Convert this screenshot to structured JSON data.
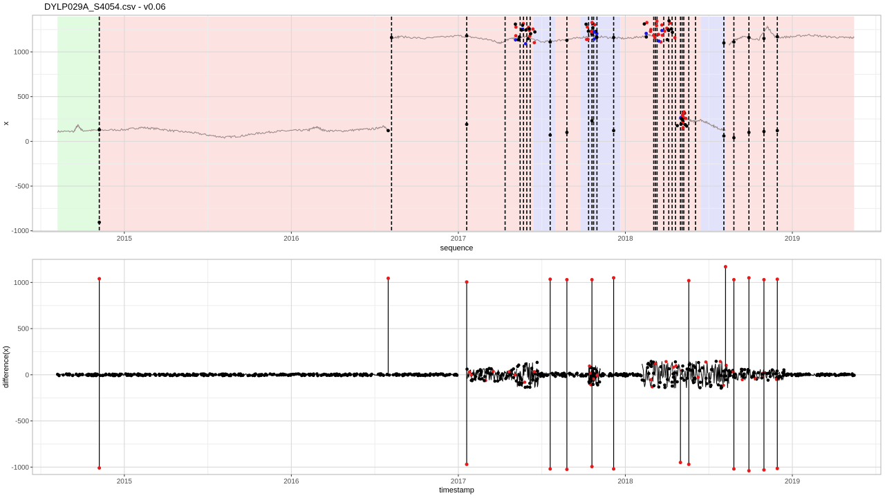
{
  "page": {
    "title": "DYLP029A_S4054.csv - v0.06"
  },
  "colors": {
    "panel_border": "#b3b3b3",
    "grid_major": "#d9d9d9",
    "grid_minor": "#ededed",
    "green_band": "#e0fbe0",
    "red_band": "#fde2e2",
    "blue_band": "#e2e3fb",
    "series_top": "#9b8a8a",
    "changepoint_line": "#000000",
    "point_black": "#000000",
    "point_red": "#e41a1c",
    "point_blue": "#1a1ae4"
  },
  "chart_data": [
    {
      "type": "line",
      "title": "",
      "xlabel": "sequence",
      "ylabel": "x",
      "xlim": [
        2014.45,
        2019.53
      ],
      "ylim": [
        -1010,
        1410
      ],
      "x_ticks": [
        2015,
        2016,
        2017,
        2018,
        2019
      ],
      "x_tick_labels": [
        "2015",
        "2016",
        "2017",
        "2018",
        "2019"
      ],
      "y_ticks": [
        1000,
        500,
        0,
        -500,
        -1000
      ],
      "y_tick_labels": [
        "1000",
        "500",
        "0",
        "-500",
        "-1000"
      ],
      "grid": true,
      "regions": [
        {
          "class": "green",
          "from": 2014.6,
          "to": 2014.85
        },
        {
          "class": "red",
          "from": 2014.85,
          "to": 2017.45
        },
        {
          "class": "blue",
          "from": 2017.45,
          "to": 2017.58
        },
        {
          "class": "red",
          "from": 2017.58,
          "to": 2017.73
        },
        {
          "class": "blue",
          "from": 2017.73,
          "to": 2017.97
        },
        {
          "class": "red",
          "from": 2017.97,
          "to": 2018.45
        },
        {
          "class": "blue",
          "from": 2018.45,
          "to": 2018.6
        },
        {
          "class": "red",
          "from": 2018.6,
          "to": 2019.37
        }
      ],
      "series": [
        {
          "x": [
            2014.6,
            2014.7,
            2014.72,
            2014.75,
            2014.85,
            2015.0,
            2015.1,
            2015.2,
            2015.3,
            2015.4,
            2015.5,
            2015.6,
            2015.7,
            2015.8,
            2015.9,
            2016.0,
            2016.1,
            2016.15,
            2016.2,
            2016.3,
            2016.4,
            2016.5,
            2016.55,
            2016.58
          ],
          "y": [
            110,
            112,
            180,
            120,
            125,
            130,
            155,
            140,
            115,
            100,
            70,
            45,
            60,
            90,
            110,
            120,
            125,
            160,
            120,
            115,
            130,
            140,
            170,
            120
          ]
        },
        {
          "x": [
            2016.6,
            2016.65,
            2016.8,
            2017.0,
            2017.1,
            2017.2,
            2017.25,
            2017.3,
            2017.4,
            2017.5,
            2017.6,
            2017.7,
            2017.8,
            2017.9,
            2018.0,
            2018.1,
            2018.15,
            2018.2
          ],
          "y": [
            1160,
            1170,
            1150,
            1180,
            1160,
            1130,
            1100,
            1140,
            1170,
            1110,
            1130,
            1150,
            1180,
            1160,
            1150,
            1170,
            1190,
            1180
          ]
        },
        {
          "x": [
            2018.32,
            2018.35,
            2018.4,
            2018.45,
            2018.5,
            2018.55,
            2018.6
          ],
          "y": [
            250,
            280,
            220,
            240,
            200,
            150,
            120
          ]
        },
        {
          "x": [
            2018.62,
            2018.65,
            2018.7,
            2018.8,
            2018.85,
            2018.9,
            2019.0,
            2019.1,
            2019.2,
            2019.3,
            2019.37
          ],
          "y": [
            1080,
            1130,
            1170,
            1140,
            1280,
            1160,
            1170,
            1190,
            1170,
            1160,
            1160
          ]
        }
      ],
      "changepoints": [
        2014.85,
        2016.6,
        2017.05,
        2017.28,
        2017.37,
        2017.39,
        2017.41,
        2017.43,
        2017.55,
        2017.65,
        2017.78,
        2017.8,
        2017.81,
        2017.83,
        2017.93,
        2018.17,
        2018.18,
        2018.19,
        2018.23,
        2018.26,
        2018.28,
        2018.3,
        2018.33,
        2018.34,
        2018.35,
        2018.38,
        2018.42,
        2018.59,
        2018.65,
        2018.74,
        2018.83,
        2018.91
      ]
    },
    {
      "type": "scatter",
      "title": "",
      "xlabel": "timestamp",
      "ylabel": "difference(x)",
      "xlim": [
        2014.45,
        2019.53
      ],
      "ylim": [
        -1080,
        1250
      ],
      "x_ticks": [
        2015,
        2016,
        2017,
        2018,
        2019
      ],
      "x_tick_labels": [
        "2015",
        "2016",
        "2017",
        "2018",
        "2019"
      ],
      "y_ticks": [
        1000,
        500,
        0,
        -500,
        -1000
      ],
      "y_tick_labels": [
        "1000",
        "500",
        "0",
        "-500",
        "-1000"
      ],
      "grid": true,
      "spikes": [
        {
          "x": 2014.85,
          "low": -1010,
          "high": 1040
        },
        {
          "x": 2016.58,
          "low": 0,
          "high": 1045
        },
        {
          "x": 2017.05,
          "low": -970,
          "high": 1005
        },
        {
          "x": 2017.55,
          "low": -1020,
          "high": 1035
        },
        {
          "x": 2017.65,
          "low": -1025,
          "high": 1030
        },
        {
          "x": 2017.8,
          "low": -995,
          "high": 1030
        },
        {
          "x": 2017.93,
          "low": -1020,
          "high": 1050
        },
        {
          "x": 2018.33,
          "low": -950,
          "high": 0
        },
        {
          "x": 2018.38,
          "low": -970,
          "high": 1020
        },
        {
          "x": 2018.6,
          "low": 0,
          "high": 1170
        },
        {
          "x": 2018.65,
          "low": -1020,
          "high": 1030
        },
        {
          "x": 2018.74,
          "low": -1040,
          "high": 1050
        },
        {
          "x": 2018.83,
          "low": -1030,
          "high": 1030
        },
        {
          "x": 2018.91,
          "low": -1015,
          "high": 1035
        }
      ],
      "noise_segments": [
        {
          "from": 2014.6,
          "to": 2017.0,
          "amp": 10
        },
        {
          "from": 2017.05,
          "to": 2017.35,
          "amp": 70
        },
        {
          "from": 2017.35,
          "to": 2017.48,
          "amp": 140
        },
        {
          "from": 2017.48,
          "to": 2017.78,
          "amp": 20
        },
        {
          "from": 2017.78,
          "to": 2017.85,
          "amp": 110
        },
        {
          "from": 2017.85,
          "to": 2018.1,
          "amp": 15
        },
        {
          "from": 2018.1,
          "to": 2018.62,
          "amp": 150
        },
        {
          "from": 2018.62,
          "to": 2018.95,
          "amp": 60
        },
        {
          "from": 2018.95,
          "to": 2019.37,
          "amp": 10
        }
      ]
    }
  ]
}
